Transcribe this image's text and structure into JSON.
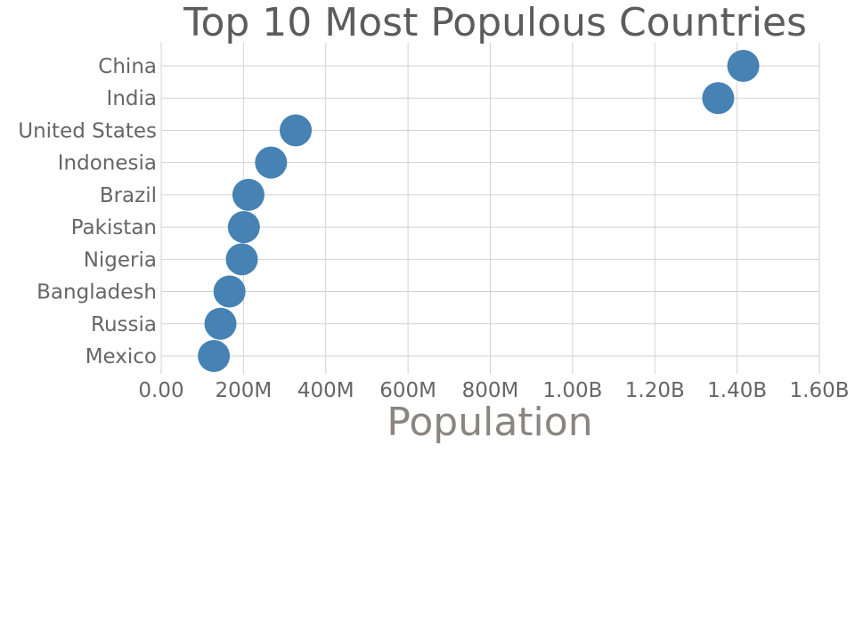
{
  "chart_data": {
    "type": "scatter",
    "title": "Top 10 Most Populous Countries",
    "xlabel": "Population",
    "ylabel": "",
    "xlim": [
      0,
      1600000000
    ],
    "x_ticks": [
      0,
      200000000,
      400000000,
      600000000,
      800000000,
      1000000000,
      1200000000,
      1400000000,
      1600000000
    ],
    "x_tick_labels": [
      "0.00",
      "200M",
      "400M",
      "600M",
      "800M",
      "1.00B",
      "1.20B",
      "1.40B",
      "1.60B"
    ],
    "grid": true,
    "color": "#4682b4",
    "categories": [
      "China",
      "India",
      "United States",
      "Indonesia",
      "Brazil",
      "Pakistan",
      "Nigeria",
      "Bangladesh",
      "Russia",
      "Mexico"
    ],
    "values": [
      1415000000,
      1354000000,
      327000000,
      267000000,
      212000000,
      201000000,
      196000000,
      166000000,
      144000000,
      128000000
    ]
  }
}
